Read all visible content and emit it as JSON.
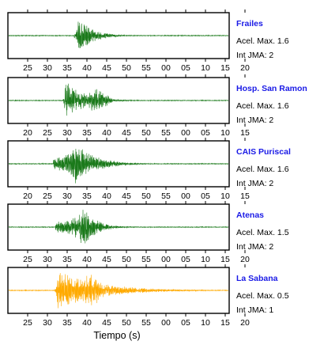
{
  "chart_data": {
    "type": "line",
    "xlabel": "Tiempo (s)",
    "accel_label": "Acel. Max.",
    "int_label": "Int JMA:",
    "panels": [
      {
        "station": "Frailes",
        "accel_max": "1.6",
        "int_jma": "2",
        "color": "#1b7a1b",
        "ticks": [
          "25",
          "30",
          "35",
          "40",
          "45",
          "50",
          "55",
          "00",
          "05",
          "10",
          "15",
          "20"
        ],
        "onset": 36.8,
        "peak_time": 37.8,
        "peak_amp": 0.92,
        "pre_amp": 0.12,
        "coda_decay": 0.28
      },
      {
        "station": "Hosp. San Ramon",
        "accel_max": "1.6",
        "int_jma": "2",
        "color": "#1b7a1b",
        "ticks": [
          "20",
          "25",
          "30",
          "35",
          "40",
          "45",
          "50",
          "55",
          "00",
          "05",
          "10",
          "15"
        ],
        "onset": 34.0,
        "peak_time": 34.5,
        "peak_amp": 0.95,
        "second_time": 42.5,
        "second_amp": 0.6,
        "pre_amp": 0.12,
        "coda_decay": 0.22
      },
      {
        "station": "CAIS Puriscal",
        "accel_max": "1.6",
        "int_jma": "2",
        "color": "#1b7a1b",
        "ticks": [
          "20",
          "25",
          "30",
          "35",
          "40",
          "45",
          "50",
          "55",
          "00",
          "05",
          "10",
          "15"
        ],
        "onset": 31.5,
        "peak_time": 37.2,
        "peak_amp": 0.95,
        "pre_amp": 0.3,
        "coda_decay": 0.2
      },
      {
        "station": "Atenas",
        "accel_max": "1.5",
        "int_jma": "2",
        "color": "#1b7a1b",
        "ticks": [
          "25",
          "30",
          "35",
          "40",
          "45",
          "50",
          "55",
          "00",
          "05",
          "10",
          "15",
          "20"
        ],
        "onset": 32.0,
        "peak_time": 39.2,
        "peak_amp": 0.95,
        "pre_amp": 0.25,
        "coda_decay": 0.32
      },
      {
        "station": "La Sabana",
        "accel_max": "0.5",
        "int_jma": "1",
        "color": "#ffaa00",
        "ticks": [
          "25",
          "30",
          "35",
          "40",
          "45",
          "50",
          "55",
          "00",
          "05",
          "10",
          "15",
          "20"
        ],
        "onset": 31.8,
        "peak_time": 32.6,
        "peak_amp": 0.95,
        "second_time": 41.0,
        "second_amp": 0.85,
        "pre_amp": 0.08,
        "coda_decay": 0.1
      }
    ]
  }
}
